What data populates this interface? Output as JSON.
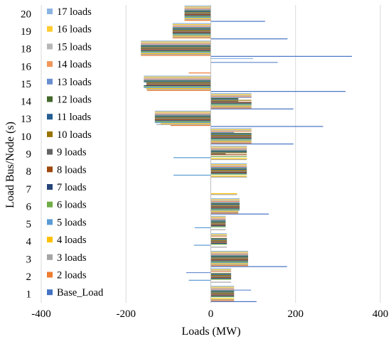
{
  "chart_data": {
    "type": "bar",
    "orientation": "horizontal",
    "xlabel": "Loads (MW)",
    "ylabel": "Load Bus/Node (s)",
    "xlim": [
      -400,
      400
    ],
    "xticks": [
      "-400",
      "-200",
      "0",
      "200",
      "400"
    ],
    "grid": "vertical",
    "legend_position": "left",
    "categories": [
      "1",
      "2",
      "3",
      "4",
      "5",
      "6",
      "7",
      "8",
      "9",
      "10",
      "13",
      "14",
      "15",
      "16",
      "18",
      "19",
      "20"
    ],
    "series": [
      {
        "name": "Base_Load",
        "color": "#4472C4",
        "values": [
          108,
          0,
          180,
          0,
          0,
          137,
          0,
          0,
          0,
          195,
          265,
          195,
          318,
          0,
          333,
          181,
          128
        ]
      },
      {
        "name": "2 loads",
        "color": "#ED7D31",
        "values": [
          55,
          0,
          88,
          0,
          0,
          65,
          0,
          0,
          0,
          96,
          -95,
          96,
          -150,
          -52,
          -165,
          -90,
          -62
        ]
      },
      {
        "name": "3 loads",
        "color": "#A5A5A5",
        "values": [
          55,
          48,
          88,
          38,
          35,
          65,
          62,
          85,
          85,
          96,
          -128,
          96,
          -152,
          0,
          -165,
          -90,
          -62
        ]
      },
      {
        "name": "4 loads",
        "color": "#FFC000",
        "values": [
          55,
          0,
          88,
          0,
          0,
          65,
          62,
          85,
          85,
          96,
          -118,
          96,
          -152,
          0,
          -165,
          -90,
          -62
        ]
      },
      {
        "name": "5 loads",
        "color": "#5B9BD5",
        "values": [
          0,
          -52,
          88,
          -40,
          -38,
          68,
          0,
          -88,
          -88,
          96,
          -132,
          96,
          -158,
          0,
          -165,
          -90,
          -62
        ]
      },
      {
        "name": "6 loads",
        "color": "#70AD47",
        "values": [
          55,
          48,
          88,
          38,
          35,
          68,
          0,
          85,
          85,
          96,
          -132,
          96,
          -158,
          0,
          -165,
          -90,
          -62
        ]
      },
      {
        "name": "7 loads",
        "color": "#264478",
        "values": [
          55,
          48,
          88,
          38,
          35,
          68,
          0,
          85,
          0,
          96,
          -132,
          96,
          -158,
          0,
          -165,
          -90,
          -62
        ]
      },
      {
        "name": "8 loads",
        "color": "#9E480E",
        "values": [
          55,
          48,
          88,
          38,
          35,
          68,
          0,
          85,
          85,
          96,
          -132,
          96,
          -152,
          0,
          -165,
          -90,
          -62
        ]
      },
      {
        "name": "9 loads",
        "color": "#636363",
        "values": [
          55,
          48,
          88,
          38,
          35,
          68,
          0,
          85,
          35,
          96,
          -132,
          65,
          -152,
          0,
          -165,
          -90,
          -62
        ]
      },
      {
        "name": "10 loads",
        "color": "#997300",
        "values": [
          55,
          48,
          88,
          38,
          35,
          68,
          0,
          85,
          85,
          96,
          -132,
          96,
          -152,
          0,
          -165,
          -90,
          -62
        ]
      },
      {
        "name": "11 loads",
        "color": "#255E91",
        "values": [
          55,
          48,
          88,
          38,
          35,
          68,
          0,
          85,
          85,
          96,
          -132,
          65,
          -158,
          0,
          -165,
          -90,
          -62
        ]
      },
      {
        "name": "12 loads",
        "color": "#43682B",
        "values": [
          55,
          48,
          88,
          38,
          35,
          68,
          0,
          85,
          85,
          96,
          -132,
          65,
          -158,
          0,
          -165,
          -90,
          -62
        ]
      },
      {
        "name": "13 loads",
        "color": "#698ED0",
        "values": [
          95,
          -58,
          88,
          0,
          35,
          68,
          0,
          85,
          85,
          55,
          -132,
          96,
          -158,
          158,
          -165,
          -90,
          -62
        ]
      },
      {
        "name": "14 loads",
        "color": "#F1975A",
        "values": [
          55,
          48,
          88,
          38,
          35,
          68,
          0,
          85,
          85,
          96,
          -132,
          96,
          -158,
          0,
          -165,
          -90,
          -62
        ]
      },
      {
        "name": "15 loads",
        "color": "#B7B7B7",
        "values": [
          55,
          48,
          88,
          38,
          35,
          68,
          0,
          85,
          85,
          96,
          -132,
          96,
          -158,
          0,
          -165,
          -90,
          -62
        ]
      },
      {
        "name": "16 loads",
        "color": "#FFCD33",
        "values": [
          55,
          48,
          88,
          38,
          35,
          68,
          0,
          85,
          85,
          96,
          -132,
          96,
          -158,
          0,
          -165,
          -90,
          -62
        ]
      },
      {
        "name": "17 loads",
        "color": "#8CB4E2",
        "values": [
          55,
          48,
          88,
          38,
          35,
          68,
          0,
          85,
          85,
          96,
          -132,
          96,
          -158,
          100,
          -165,
          -90,
          -62
        ]
      }
    ]
  }
}
